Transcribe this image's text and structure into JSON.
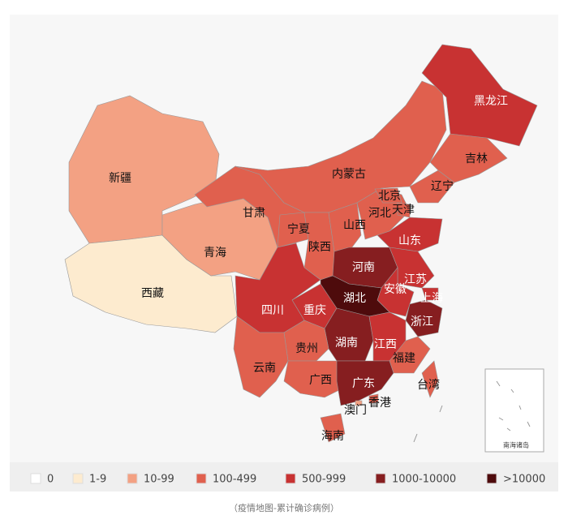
{
  "map": {
    "legend": [
      {
        "label": "0",
        "color": "#ffffff"
      },
      {
        "label": "1-9",
        "color": "#fdebcf"
      },
      {
        "label": "10-99",
        "color": "#f3a183"
      },
      {
        "label": "100-499",
        "color": "#e0604e"
      },
      {
        "label": "500-999",
        "color": "#c83232"
      },
      {
        "label": "1000-10000",
        "color": "#861e20"
      },
      {
        "label": ">10000",
        "color": "#4e0b0c"
      }
    ],
    "regions": [
      {
        "name": "新疆",
        "color": "#f3a183"
      },
      {
        "name": "西藏",
        "color": "#fdebcf"
      },
      {
        "name": "青海",
        "color": "#f3a183"
      },
      {
        "name": "甘肃",
        "color": "#e0604e"
      },
      {
        "name": "内蒙古",
        "color": "#e0604e"
      },
      {
        "name": "宁夏",
        "color": "#e0604e"
      },
      {
        "name": "陕西",
        "color": "#e0604e"
      },
      {
        "name": "山西",
        "color": "#e0604e"
      },
      {
        "name": "河北",
        "color": "#e0604e"
      },
      {
        "name": "北京",
        "color": "#e0604e"
      },
      {
        "name": "天津",
        "color": "#e0604e"
      },
      {
        "name": "辽宁",
        "color": "#e0604e"
      },
      {
        "name": "吉林",
        "color": "#e0604e"
      },
      {
        "name": "黑龙江",
        "color": "#c83232"
      },
      {
        "name": "山东",
        "color": "#c83232"
      },
      {
        "name": "河南",
        "color": "#861e20"
      },
      {
        "name": "江苏",
        "color": "#c83232"
      },
      {
        "name": "安徽",
        "color": "#c83232"
      },
      {
        "name": "上海",
        "color": "#c83232"
      },
      {
        "name": "湖北",
        "color": "#4e0b0c"
      },
      {
        "name": "浙江",
        "color": "#861e20"
      },
      {
        "name": "重庆",
        "color": "#c83232"
      },
      {
        "name": "四川",
        "color": "#c83232"
      },
      {
        "name": "湖南",
        "color": "#861e20"
      },
      {
        "name": "江西",
        "color": "#c83232"
      },
      {
        "name": "福建",
        "color": "#e0604e"
      },
      {
        "name": "贵州",
        "color": "#e0604e"
      },
      {
        "name": "云南",
        "color": "#e0604e"
      },
      {
        "name": "广西",
        "color": "#e0604e"
      },
      {
        "name": "广东",
        "color": "#861e20"
      },
      {
        "name": "香港",
        "color": "#e0604e"
      },
      {
        "name": "澳门",
        "color": "#f3a183"
      },
      {
        "name": "海南",
        "color": "#e0604e"
      },
      {
        "name": "台湾",
        "color": "#e0604e"
      }
    ],
    "inset_label": "南海诸岛",
    "caption": "（疫情地图-累计确诊病例）"
  }
}
